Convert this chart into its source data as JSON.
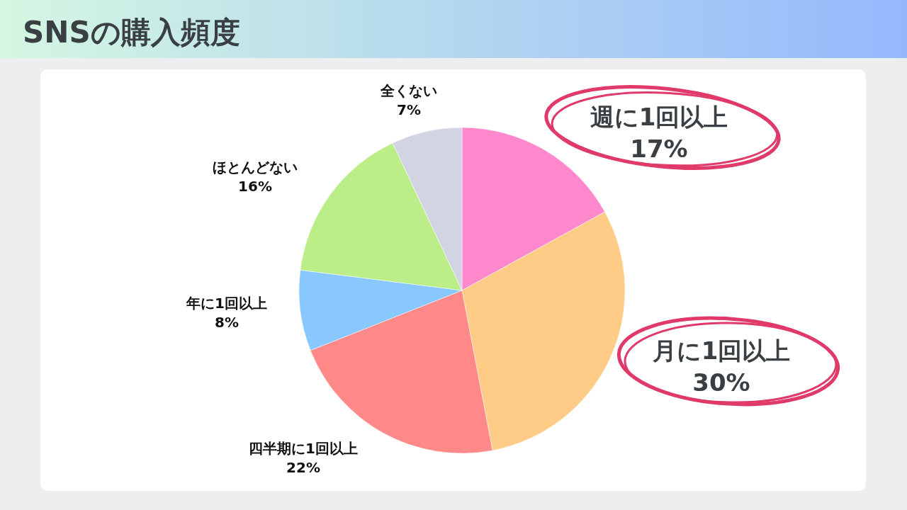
{
  "chart_data": {
    "type": "pie",
    "title": "SNSの購入頻度",
    "categories": [
      "週に1回以上",
      "月に1回以上",
      "四半期に1回以上",
      "年に1回以上",
      "ほとんどない",
      "全くない"
    ],
    "values": [
      17,
      30,
      22,
      8,
      16,
      7
    ],
    "colors": [
      "#ff88cc",
      "#ffcc88",
      "#ff8888",
      "#88c8ff",
      "#bbee88",
      "#d2d4e4"
    ],
    "value_labels": [
      "17%",
      "30%",
      "22%",
      "8%",
      "16%",
      "7%"
    ]
  }
}
